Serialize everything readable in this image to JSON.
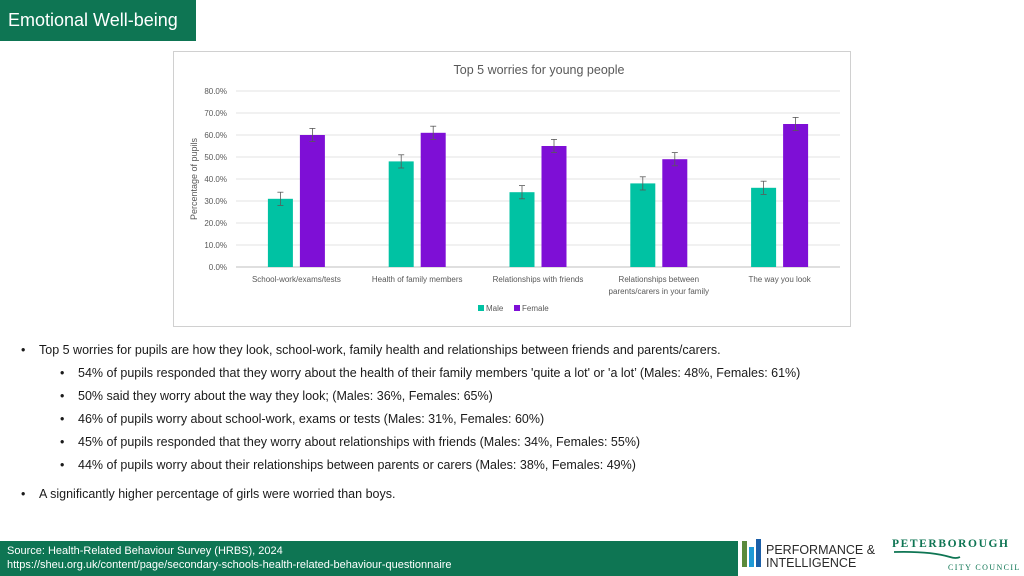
{
  "header": {
    "title": "Emotional Well-being"
  },
  "chart_data": {
    "type": "bar",
    "title": "Top 5 worries for young people",
    "ylabel": "Percentage of pupils",
    "xlabel": "",
    "ylim": [
      0,
      80
    ],
    "yticks": [
      "0.0%",
      "10.0%",
      "20.0%",
      "30.0%",
      "40.0%",
      "50.0%",
      "60.0%",
      "70.0%",
      "80.0%"
    ],
    "categories": [
      [
        "School-work/exams/tests"
      ],
      [
        "Health of family members"
      ],
      [
        "Relationships with friends"
      ],
      [
        "Relationships between",
        "parents/carers in your family"
      ],
      [
        "The way you look"
      ]
    ],
    "series": [
      {
        "name": "Male",
        "color": "#00c2a3",
        "values": [
          31,
          48,
          34,
          38,
          36
        ],
        "error": [
          3,
          3,
          3,
          3,
          3
        ]
      },
      {
        "name": "Female",
        "color": "#7e0fd6",
        "values": [
          60,
          61,
          55,
          49,
          65
        ],
        "error": [
          3,
          3,
          3,
          3,
          3
        ]
      }
    ],
    "grid": true,
    "legend": "bottom"
  },
  "bullets": {
    "main1": "Top 5 worries for pupils are how they look, school-work, family health and relationships between friends and parents/carers.",
    "subs": [
      "54% of pupils responded that they worry about the health of their family members 'quite a lot' or 'a lot’ (Males: 48%, Females: 61%)",
      "50% said they worry about the way they look; (Males: 36%, Females: 65%)",
      "46% of pupils worry about school-work, exams or tests (Males: 31%, Females: 60%)",
      "45% of pupils responded that they worry about relationships with friends (Males: 34%, Females: 55%)",
      "44% of pupils worry about their relationships between parents or carers (Males: 38%, Females: 49%)"
    ],
    "main2": "A significantly higher percentage of girls were worried than boys.",
    "bullet_char": "•"
  },
  "footer": {
    "source": "Source: Health-Related Behaviour Survey (HRBS), 2024",
    "url": "https://sheu.org.uk/content/page/secondary-schools-health-related-behaviour-questionnaire"
  },
  "logos": {
    "pi_line1": "PERFORMANCE &",
    "pi_line2": "INTELLIGENCE",
    "pcc_line1": "PETERBOROUGH",
    "pcc_line2": "CITY COUNCIL"
  }
}
